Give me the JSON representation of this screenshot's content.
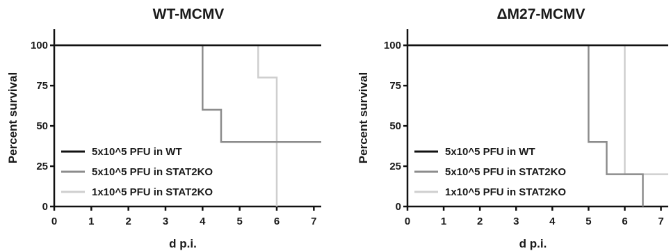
{
  "chart_data": [
    {
      "type": "line",
      "step": true,
      "title": "WT-MCMV",
      "xlabel": "d p.i.",
      "ylabel": "Percent survival",
      "xlim": [
        0,
        7.2
      ],
      "ylim": [
        0,
        110
      ],
      "xticks": [
        "0",
        "1",
        "2",
        "3",
        "4",
        "5",
        "6",
        "7"
      ],
      "yticks": [
        "0",
        "25",
        "50",
        "75",
        "100"
      ],
      "legend_position": "bottom-left",
      "series": [
        {
          "name": "5x10^5 PFU in WT",
          "color": "#111111",
          "x": [
            0,
            7.2
          ],
          "y": [
            100,
            100
          ]
        },
        {
          "name": "5x10^5 PFU in STAT2KO",
          "color": "#8c8c8c",
          "x": [
            0,
            4,
            4.5,
            7.2
          ],
          "y": [
            100,
            60,
            40,
            40
          ]
        },
        {
          "name": "1x10^5 PFU in STAT2KO",
          "color": "#cfcfcf",
          "x": [
            0,
            5.5,
            6
          ],
          "y": [
            100,
            80,
            0
          ]
        }
      ]
    },
    {
      "type": "line",
      "step": true,
      "title": "ΔM27-MCMV",
      "xlabel": "d p.i.",
      "ylabel": "Percent survival",
      "xlim": [
        0,
        7.2
      ],
      "ylim": [
        0,
        110
      ],
      "xticks": [
        "0",
        "1",
        "2",
        "3",
        "4",
        "5",
        "6",
        "7"
      ],
      "yticks": [
        "0",
        "25",
        "50",
        "75",
        "100"
      ],
      "legend_position": "bottom-left",
      "series": [
        {
          "name": "5x10^5 PFU in WT",
          "color": "#111111",
          "x": [
            0,
            7.2
          ],
          "y": [
            100,
            100
          ]
        },
        {
          "name": "5x10^5 PFU in STAT2KO",
          "color": "#8c8c8c",
          "x": [
            0,
            5,
            5.5,
            6.5
          ],
          "y": [
            100,
            40,
            20,
            0
          ]
        },
        {
          "name": "1x10^5 PFU in STAT2KO",
          "color": "#cfcfcf",
          "x": [
            0,
            6,
            7.2
          ],
          "y": [
            100,
            20,
            20
          ]
        }
      ]
    }
  ]
}
